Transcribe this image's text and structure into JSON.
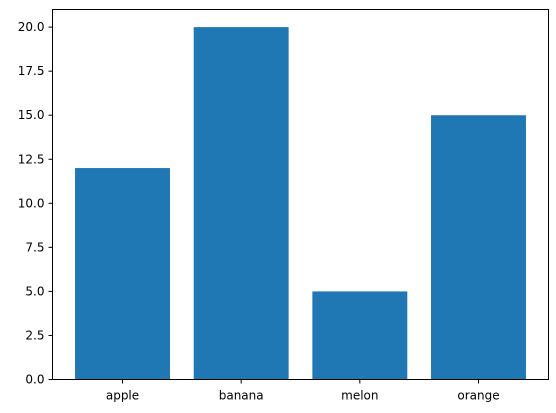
{
  "chart_data": {
    "type": "bar",
    "title": "",
    "xlabel": "",
    "ylabel": "",
    "categories": [
      "apple",
      "banana",
      "melon",
      "orange"
    ],
    "values": [
      12,
      20,
      5,
      15
    ],
    "ylim": [
      0,
      21
    ],
    "yticks": [
      0,
      2.5,
      5,
      7.5,
      10,
      12.5,
      15,
      17.5,
      20
    ],
    "ytick_labels": [
      "0.0",
      "2.5",
      "5.0",
      "7.5",
      "10.0",
      "12.5",
      "15.0",
      "17.5",
      "20.0"
    ],
    "bar_color": "#1f77b4",
    "grid": false,
    "legend": "none"
  }
}
